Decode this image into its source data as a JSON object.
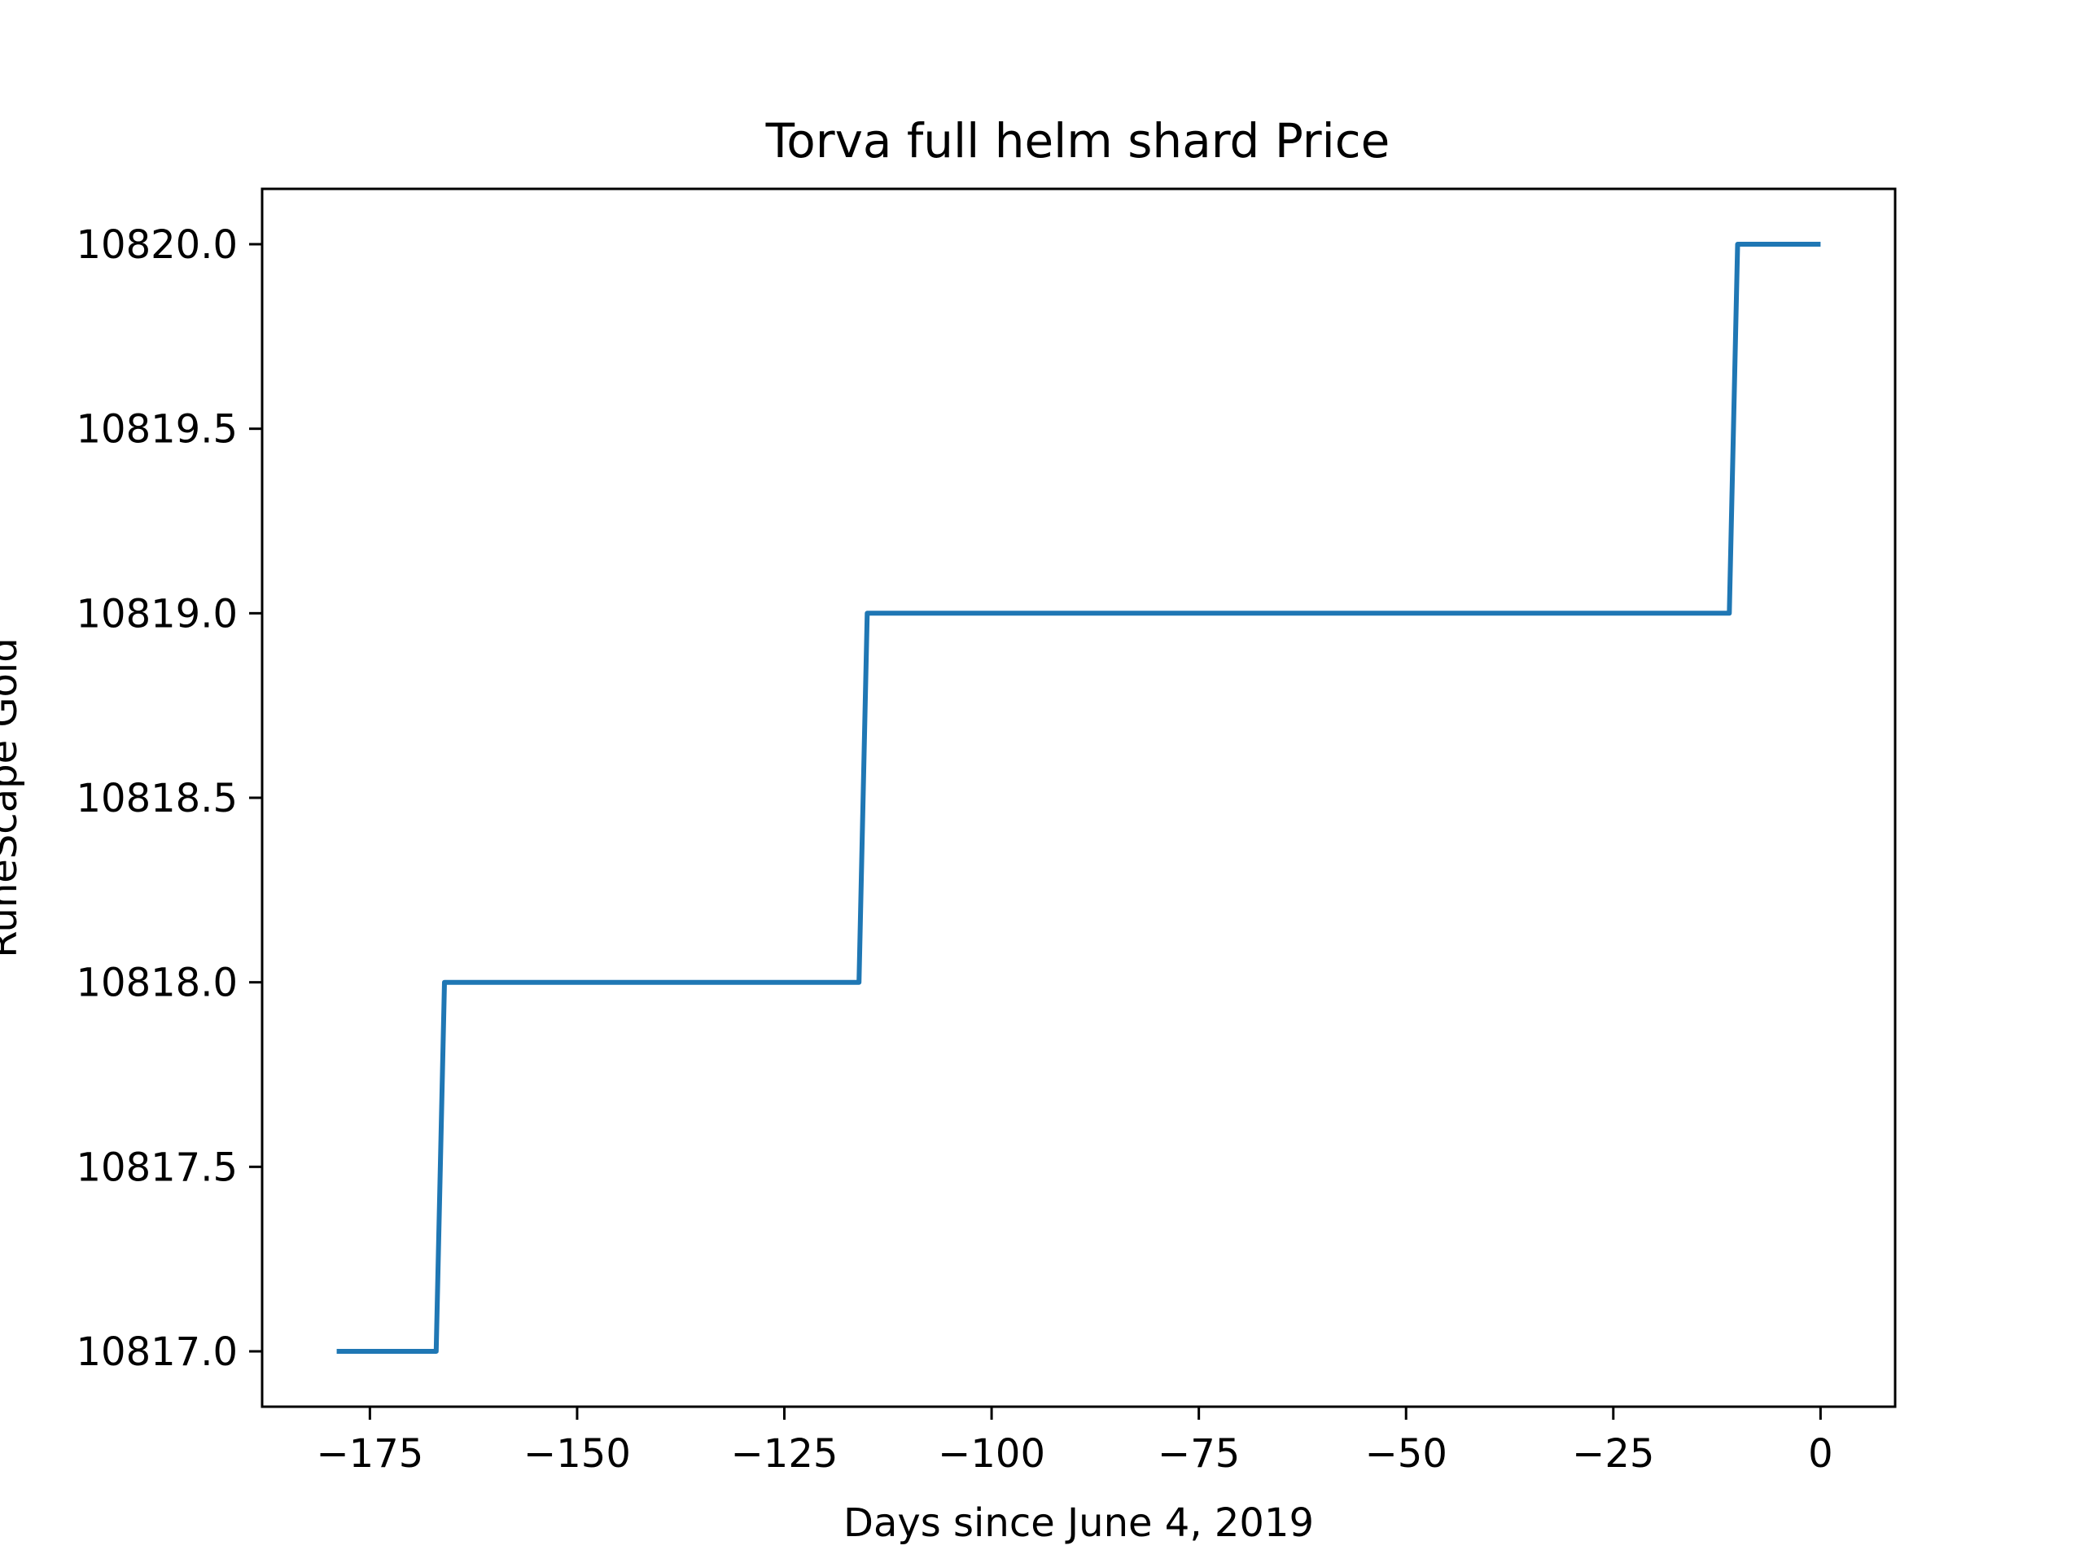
{
  "chart_data": {
    "type": "line",
    "title": "Torva full helm shard Price",
    "xlabel": "Days since June 4, 2019",
    "ylabel": "RuneScape Gold",
    "xlim": [
      -188,
      9
    ],
    "ylim": [
      10816.85,
      10820.15
    ],
    "x_ticks": [
      -175,
      -150,
      -125,
      -100,
      -75,
      -50,
      -25,
      0
    ],
    "x_tick_labels": [
      "−175",
      "−150",
      "−125",
      "−100",
      "−75",
      "−50",
      "−25",
      "0"
    ],
    "y_ticks": [
      10817.0,
      10817.5,
      10818.0,
      10818.5,
      10819.0,
      10819.5,
      10820.0
    ],
    "y_tick_labels": [
      "10817.0",
      "10817.5",
      "10818.0",
      "10818.5",
      "10819.0",
      "10819.5",
      "10820.0"
    ],
    "grid": false,
    "series": [
      {
        "color": "#1f77b4",
        "x": [
          -179,
          -167,
          -166,
          -116,
          -115,
          -11,
          -10,
          0
        ],
        "y": [
          10817,
          10817,
          10818,
          10818,
          10819,
          10819,
          10820,
          10820
        ]
      }
    ]
  }
}
